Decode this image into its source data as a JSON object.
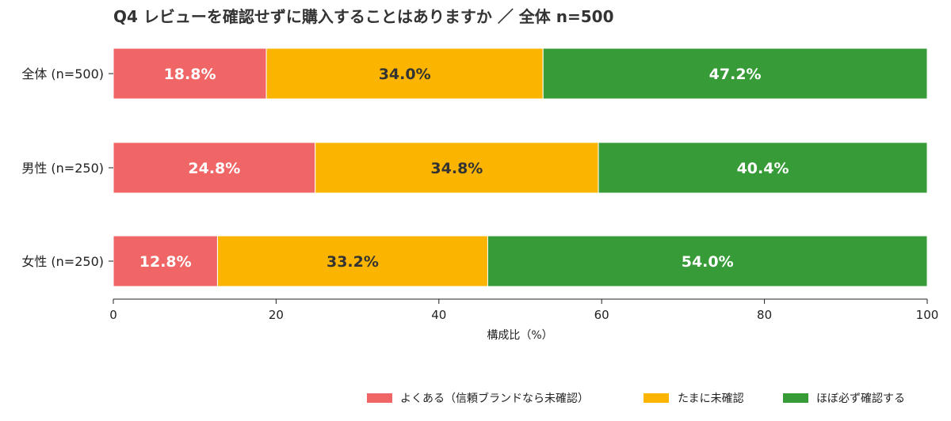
{
  "chart_data": {
    "type": "bar",
    "orientation": "horizontal",
    "stacked": true,
    "title": "Q4 レビューを確認せずに購入することはありますか ／ 全体 n=500",
    "xlabel": "構成比（%）",
    "ylabel": "",
    "xlim": [
      0,
      100
    ],
    "xticks": [
      0,
      20,
      40,
      60,
      80,
      100
    ],
    "grid": false,
    "legend_position": "bottom-right",
    "categories": [
      "全体 (n=500)",
      "男性 (n=250)",
      "女性 (n=250)"
    ],
    "series": [
      {
        "name": "よくある（信頼ブランドなら未確認）",
        "color": "#f06565",
        "label_color": "#ffffff",
        "values": [
          18.8,
          24.8,
          12.8
        ],
        "labels": [
          "18.8%",
          "24.8%",
          "12.8%"
        ]
      },
      {
        "name": "たまに未確認",
        "color": "#fbb500",
        "label_color": "#333333",
        "values": [
          34.0,
          34.8,
          33.2
        ],
        "labels": [
          "34.0%",
          "34.8%",
          "33.2%"
        ]
      },
      {
        "name": "ほぼ必ず確認する",
        "color": "#379b37",
        "label_color": "#ffffff",
        "values": [
          47.2,
          40.4,
          54.0
        ],
        "labels": [
          "47.2%",
          "40.4%",
          "54.0%"
        ]
      }
    ]
  }
}
